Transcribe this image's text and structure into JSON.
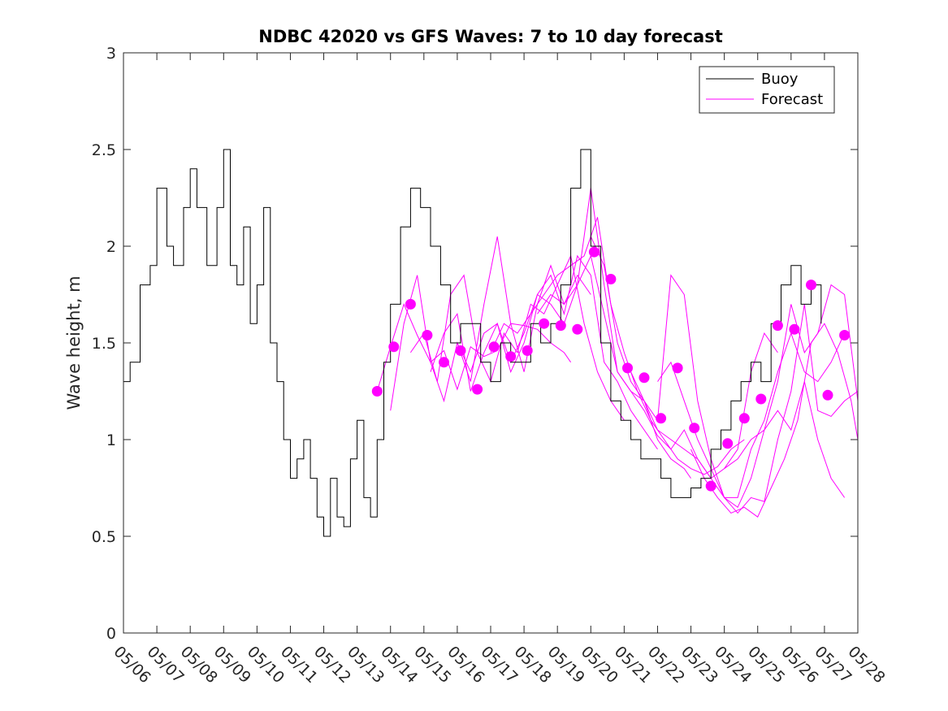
{
  "chart_data": {
    "type": "line",
    "title": "NDBC 42020 vs GFS Waves: 7 to 10 day forecast",
    "xlabel": "",
    "ylabel": "Wave height, m",
    "x_tick_labels": [
      "05/06",
      "05/07",
      "05/08",
      "05/09",
      "05/10",
      "05/11",
      "05/12",
      "05/13",
      "05/14",
      "05/15",
      "05/16",
      "05/17",
      "05/18",
      "05/19",
      "05/20",
      "05/21",
      "05/22",
      "05/23",
      "05/24",
      "05/25",
      "05/26",
      "05/27",
      "05/28"
    ],
    "xlim_days": [
      0,
      22
    ],
    "ylim": [
      0,
      3
    ],
    "y_ticks": [
      0,
      0.5,
      1,
      1.5,
      2,
      2.5,
      3
    ],
    "y_tick_labels": [
      "0",
      "0.5",
      "1",
      "1.5",
      "2",
      "2.5",
      "3"
    ],
    "legend_position": "top-right",
    "colors": {
      "buoy": "#000000",
      "forecast": "#ff00ff"
    },
    "buoy": {
      "name": "Buoy",
      "x_days": [
        0,
        0.2,
        0.5,
        0.8,
        1.0,
        1.3,
        1.5,
        1.8,
        2.0,
        2.2,
        2.5,
        2.8,
        3.0,
        3.2,
        3.4,
        3.6,
        3.8,
        4.0,
        4.2,
        4.4,
        4.6,
        4.8,
        5.0,
        5.2,
        5.4,
        5.6,
        5.8,
        6.0,
        6.2,
        6.4,
        6.6,
        6.8,
        7.0,
        7.2,
        7.4,
        7.6,
        7.8,
        8.0,
        8.3,
        8.6,
        8.9,
        9.2,
        9.5,
        9.8,
        10.1,
        10.4,
        10.7,
        11.0,
        11.3,
        11.6,
        11.9,
        12.2,
        12.5,
        12.8,
        13.1,
        13.4,
        13.7,
        14.0,
        14.3,
        14.6,
        14.9,
        15.2,
        15.5,
        15.8,
        16.1,
        16.4,
        16.7,
        17.0,
        17.3,
        17.6,
        17.9,
        18.2,
        18.5,
        18.8,
        19.1,
        19.4,
        19.7,
        20.0,
        20.3,
        20.6,
        20.9
      ],
      "values": [
        1.3,
        1.4,
        1.8,
        1.9,
        2.3,
        2.0,
        1.9,
        2.2,
        2.4,
        2.2,
        1.9,
        2.2,
        2.5,
        1.9,
        1.8,
        2.1,
        1.6,
        1.8,
        2.2,
        1.5,
        1.3,
        1.0,
        0.8,
        0.9,
        1.0,
        0.8,
        0.6,
        0.5,
        0.8,
        0.6,
        0.55,
        0.9,
        1.1,
        0.7,
        0.6,
        1.0,
        1.4,
        1.7,
        2.1,
        2.3,
        2.2,
        2.0,
        1.8,
        1.5,
        1.6,
        1.6,
        1.4,
        1.3,
        1.5,
        1.4,
        1.4,
        1.6,
        1.5,
        1.6,
        1.8,
        2.3,
        2.5,
        2.0,
        1.5,
        1.2,
        1.1,
        1.0,
        0.9,
        0.9,
        0.8,
        0.7,
        0.7,
        0.75,
        0.8,
        0.95,
        1.05,
        1.2,
        1.3,
        1.4,
        1.3,
        1.6,
        1.8,
        1.9,
        1.7,
        1.8,
        1.6
      ]
    },
    "forecast": {
      "name": "Forecast",
      "series": [
        {
          "x_days": [
            7.6,
            8.0,
            8.4,
            8.8,
            9.2,
            9.6,
            10.0,
            10.4,
            10.8,
            11.2,
            11.6,
            12.0,
            12.4,
            12.8,
            13.2,
            13.4
          ],
          "values": [
            1.25,
            1.48,
            1.7,
            1.54,
            1.4,
            1.46,
            1.26,
            1.48,
            1.43,
            1.46,
            1.6,
            1.59,
            1.57,
            1.5,
            1.45,
            1.4
          ]
        },
        {
          "x_days": [
            8.0,
            8.4,
            8.8,
            9.2,
            9.6,
            10.0,
            10.4,
            10.8,
            11.2,
            11.6,
            12.0,
            12.4,
            12.8,
            13.2,
            13.6,
            14.0
          ],
          "values": [
            1.15,
            1.6,
            1.85,
            1.4,
            1.2,
            1.5,
            1.3,
            1.7,
            2.05,
            1.6,
            1.35,
            1.7,
            1.9,
            1.7,
            1.85,
            1.75
          ]
        },
        {
          "x_days": [
            8.6,
            9.0,
            9.4,
            9.8,
            10.2,
            10.6,
            11.0,
            11.4,
            11.8,
            12.2,
            12.6,
            13.0,
            13.4,
            13.8,
            14.2,
            14.6,
            15.0
          ],
          "values": [
            1.45,
            1.55,
            1.3,
            1.75,
            1.85,
            1.45,
            1.3,
            1.55,
            1.45,
            1.7,
            1.65,
            1.8,
            1.95,
            1.6,
            1.35,
            1.2,
            1.1
          ]
        },
        {
          "x_days": [
            9.2,
            9.6,
            10.0,
            10.4,
            10.8,
            11.2,
            11.6,
            12.0,
            12.4,
            12.8,
            13.2,
            13.6,
            14.0,
            14.4,
            14.8,
            15.2,
            15.6,
            16.0
          ],
          "values": [
            1.35,
            1.55,
            1.65,
            1.25,
            1.45,
            1.6,
            1.35,
            1.5,
            1.75,
            1.85,
            1.65,
            1.95,
            1.85,
            1.4,
            1.3,
            1.15,
            1.05,
            0.95
          ]
        },
        {
          "x_days": [
            10.0,
            10.4,
            10.8,
            11.2,
            11.6,
            12.0,
            12.4,
            12.8,
            13.2,
            13.6,
            14.0,
            14.4,
            14.8,
            15.2,
            15.6,
            16.0,
            16.4,
            16.8,
            17.0
          ],
          "values": [
            1.5,
            1.35,
            1.55,
            1.6,
            1.4,
            1.55,
            1.75,
            1.7,
            1.6,
            1.8,
            2.3,
            1.8,
            1.35,
            1.25,
            1.2,
            1.0,
            0.9,
            0.85,
            0.8
          ]
        },
        {
          "x_days": [
            11.0,
            11.4,
            11.8,
            12.2,
            12.6,
            13.0,
            13.4,
            13.8,
            14.2,
            14.6,
            15.0,
            15.4,
            15.8,
            16.2,
            16.6,
            17.0,
            17.4,
            17.8,
            18.2,
            18.6
          ],
          "values": [
            1.45,
            1.6,
            1.55,
            1.65,
            1.75,
            1.85,
            1.9,
            1.95,
            2.15,
            1.7,
            1.45,
            1.25,
            1.1,
            1.0,
            0.9,
            0.85,
            0.82,
            0.86,
            0.95,
            1.0
          ]
        },
        {
          "x_days": [
            12.4,
            12.8,
            13.2,
            13.6,
            14.0,
            14.4,
            14.8,
            15.2,
            15.6,
            16.0,
            16.4,
            16.8,
            17.2,
            17.6,
            18.0,
            18.4,
            18.8,
            19.2,
            19.6
          ],
          "values": [
            1.65,
            1.75,
            1.7,
            1.8,
            1.95,
            1.65,
            1.35,
            1.25,
            1.15,
            1.02,
            0.95,
            1.05,
            0.9,
            0.8,
            0.85,
            0.95,
            1.35,
            1.55,
            1.45
          ]
        },
        {
          "x_days": [
            14.0,
            14.4,
            14.8,
            15.2,
            15.6,
            16.0,
            16.4,
            16.8,
            17.2,
            17.6,
            18.0,
            18.4,
            18.8,
            19.2,
            19.6,
            20.0,
            20.4,
            20.8,
            21.2,
            21.6
          ],
          "values": [
            2.05,
            1.9,
            1.5,
            1.3,
            1.2,
            1.1,
            1.85,
            1.75,
            1.2,
            0.9,
            0.7,
            0.7,
            0.95,
            1.1,
            1.35,
            1.55,
            1.35,
            1.3,
            1.4,
            1.55
          ]
        },
        {
          "x_days": [
            15.2,
            15.6,
            16.0,
            16.4,
            16.8,
            17.2,
            17.6,
            18.0,
            18.4,
            18.8,
            19.2,
            19.6,
            20.0,
            20.4,
            20.8,
            21.2,
            21.6,
            22.0
          ],
          "values": [
            1.35,
            1.2,
            1.05,
            1.0,
            0.95,
            0.9,
            0.8,
            0.7,
            0.65,
            0.8,
            1.05,
            1.3,
            1.7,
            1.45,
            1.55,
            1.8,
            1.75,
            1.2
          ]
        },
        {
          "x_days": [
            16.0,
            16.4,
            16.8,
            17.2,
            17.6,
            18.0,
            18.4,
            18.8,
            19.2,
            19.6,
            20.0,
            20.4,
            20.8,
            21.2,
            21.6,
            22.0
          ],
          "values": [
            1.3,
            1.4,
            1.2,
            1.0,
            0.85,
            0.7,
            0.62,
            0.7,
            0.68,
            1.0,
            1.25,
            1.7,
            1.15,
            1.12,
            1.2,
            1.25
          ]
        },
        {
          "x_days": [
            17.0,
            17.4,
            17.8,
            18.2,
            18.6,
            19.0,
            19.4,
            19.8,
            20.2,
            20.6,
            21.0,
            21.4,
            21.8,
            22.0
          ],
          "values": [
            0.95,
            0.8,
            0.7,
            0.62,
            0.65,
            0.6,
            0.75,
            0.9,
            1.1,
            1.5,
            1.6,
            1.45,
            1.2,
            1.0
          ]
        },
        {
          "x_days": [
            18.0,
            18.4,
            18.8,
            19.2,
            19.6,
            20.0,
            20.4,
            20.8,
            21.2,
            21.6
          ],
          "values": [
            0.85,
            0.9,
            1.0,
            1.05,
            1.15,
            1.05,
            1.3,
            1.0,
            0.8,
            0.7
          ]
        }
      ],
      "markers": {
        "x_days": [
          7.6,
          8.1,
          8.6,
          9.1,
          9.6,
          10.1,
          10.6,
          11.1,
          11.6,
          12.1,
          12.6,
          13.1,
          13.6,
          14.1,
          14.6,
          15.1,
          15.6,
          16.1,
          16.6,
          17.1,
          17.6,
          18.1,
          18.6,
          19.1,
          19.6,
          20.1,
          20.6,
          21.1,
          21.6
        ],
        "values": [
          1.25,
          1.48,
          1.7,
          1.54,
          1.4,
          1.46,
          1.26,
          1.48,
          1.43,
          1.46,
          1.6,
          1.59,
          1.57,
          1.97,
          1.83,
          1.37,
          1.32,
          1.11,
          1.37,
          1.06,
          0.76,
          0.98,
          1.11,
          1.21,
          1.59,
          1.57,
          1.8,
          1.23,
          1.54
        ]
      }
    }
  }
}
